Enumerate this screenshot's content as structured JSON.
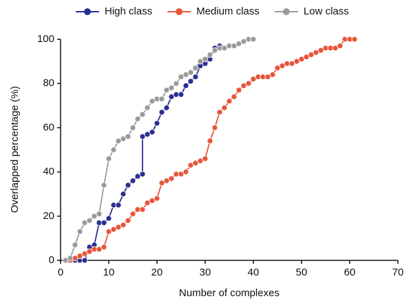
{
  "chart_data": {
    "type": "line",
    "x_label": "Number of complexes",
    "y_label": "Overlapped percentage (%)",
    "xlim": [
      0,
      70
    ],
    "xticks": [
      0,
      10,
      20,
      30,
      40,
      50,
      60,
      70
    ],
    "ylim": [
      0,
      100
    ],
    "yticks": [
      0,
      20,
      40,
      60,
      80,
      100
    ],
    "grid": false,
    "legend": "top",
    "series": [
      {
        "name": "High class",
        "color": "#2b2f8f",
        "x": [
          3,
          4,
          5,
          6,
          7,
          8,
          9,
          10,
          11,
          12,
          13,
          14,
          15,
          16,
          17,
          17,
          18,
          19,
          20,
          21,
          22,
          23,
          24,
          25,
          26,
          27,
          28,
          29,
          30,
          31,
          32,
          33
        ],
        "values": [
          0,
          0,
          0,
          6,
          7,
          17,
          17,
          19,
          25,
          25,
          30,
          34,
          36,
          38,
          39,
          56,
          57,
          58,
          62,
          67,
          69,
          74,
          75,
          75,
          79,
          81,
          83,
          88,
          89,
          91,
          96,
          97
        ]
      },
      {
        "name": "Medium class",
        "color": "#e8553a",
        "x": [
          2,
          3,
          4,
          5,
          6,
          7,
          8,
          9,
          10,
          11,
          12,
          13,
          14,
          15,
          16,
          17,
          18,
          19,
          20,
          21,
          22,
          23,
          24,
          25,
          26,
          27,
          28,
          29,
          30,
          31,
          32,
          33,
          34,
          35,
          36,
          37,
          38,
          39,
          40,
          41,
          42,
          43,
          44,
          45,
          46,
          47,
          48,
          49,
          50,
          51,
          52,
          53,
          54,
          55,
          56,
          57,
          58,
          59,
          60,
          61
        ],
        "values": [
          0,
          1,
          2,
          3,
          4,
          5,
          5,
          6,
          13,
          14,
          15,
          16,
          18,
          21,
          23,
          23,
          26,
          27,
          28,
          35,
          36,
          37,
          39,
          39,
          40,
          43,
          44,
          45,
          46,
          54,
          60,
          67,
          69,
          72,
          74,
          77,
          79,
          80,
          82,
          83,
          83,
          83,
          84,
          87,
          88,
          89,
          89,
          90,
          91,
          92,
          93,
          94,
          95,
          96,
          96,
          96,
          97,
          100,
          100,
          100
        ]
      },
      {
        "name": "Low class",
        "color": "#9a9a9a",
        "x": [
          1,
          2,
          3,
          4,
          5,
          6,
          7,
          8,
          9,
          10,
          11,
          12,
          13,
          14,
          15,
          16,
          17,
          18,
          19,
          20,
          21,
          22,
          23,
          24,
          25,
          26,
          27,
          28,
          29,
          30,
          31,
          32,
          33,
          34,
          35,
          36,
          37,
          38,
          39,
          40
        ],
        "values": [
          0,
          1,
          7,
          13,
          17,
          18,
          20,
          21,
          34,
          46,
          50,
          54,
          55,
          56,
          60,
          64,
          66,
          69,
          72,
          73,
          73,
          77,
          78,
          80,
          83,
          84,
          85,
          87,
          90,
          91,
          93,
          95,
          96,
          96,
          97,
          97,
          98,
          99,
          100,
          100
        ]
      }
    ]
  }
}
